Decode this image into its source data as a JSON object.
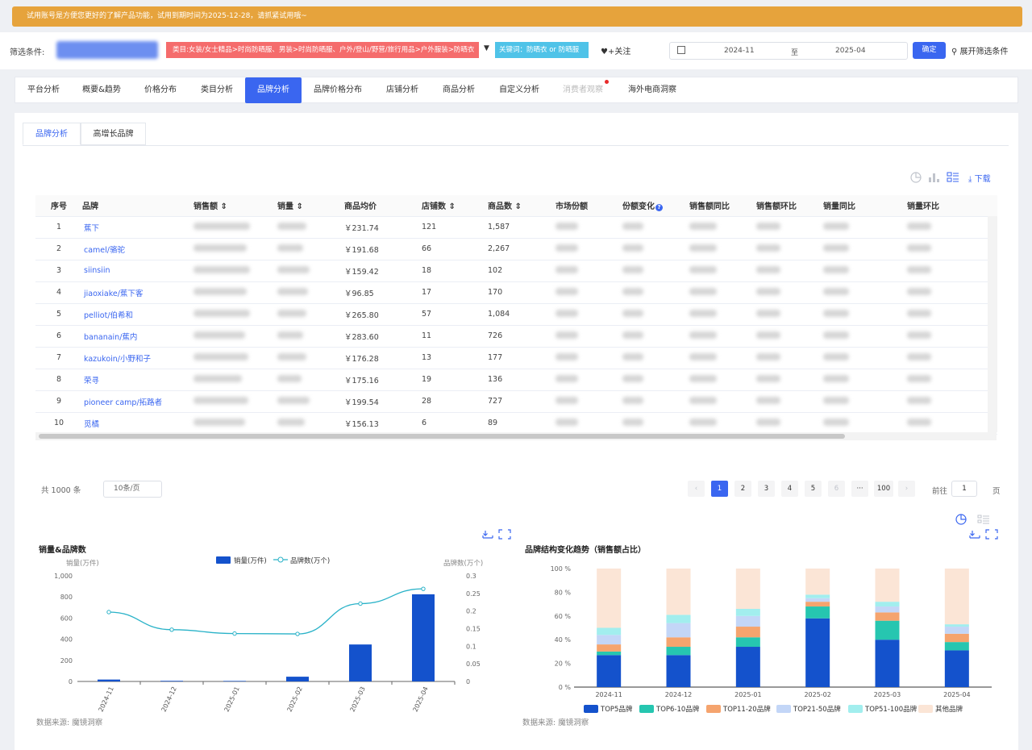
{
  "banner": {
    "text": "试用账号是方便您更好的了解产品功能，试用到期时间为2025-12-28，请抓紧试用哦~"
  },
  "filter": {
    "label": "筛选条件:",
    "category_tag": "类目:女装/女士精品>时尚防晒服、男装>时尚防晒服、户外/登山/野营/旅行用品>户外服装>防晒衣",
    "keyword_tag": "关键词：防晒衣 or 防晒服",
    "follow": "♥+关注",
    "date_from": "2024-11",
    "date_to_label": "至",
    "date_to": "2025-04",
    "confirm": "确定",
    "expand": "展开筛选条件"
  },
  "nav": {
    "tabs": [
      "平台分析",
      "概要&趋势",
      "价格分布",
      "类目分析",
      "品牌分析",
      "品牌价格分布",
      "店铺分析",
      "商品分析",
      "自定义分析",
      "消费者观察",
      "海外电商洞察"
    ],
    "active": "品牌分析"
  },
  "subtabs": [
    "品牌分析",
    "高增长品牌"
  ],
  "download_label": "下载",
  "table": {
    "headers": [
      "序号",
      "品牌",
      "销售额",
      "销量",
      "商品均价",
      "店铺数",
      "商品数",
      "市场份额",
      "份额变化",
      "销售额同比",
      "销售额环比",
      "销量同比",
      "销量环比"
    ],
    "rows": [
      {
        "idx": "1",
        "brand": "蕉下",
        "price": "￥231.74",
        "shops": "121",
        "items": "1,587"
      },
      {
        "idx": "2",
        "brand": "camel/骆驼",
        "price": "￥191.68",
        "shops": "66",
        "items": "2,267"
      },
      {
        "idx": "3",
        "brand": "siinsiin",
        "price": "￥159.42",
        "shops": "18",
        "items": "102"
      },
      {
        "idx": "4",
        "brand": "jiaoxiake/蕉下客",
        "price": "￥96.85",
        "shops": "17",
        "items": "170"
      },
      {
        "idx": "5",
        "brand": "pelliot/伯希和",
        "price": "￥265.80",
        "shops": "57",
        "items": "1,084"
      },
      {
        "idx": "6",
        "brand": "bananain/蕉内",
        "price": "￥283.60",
        "shops": "11",
        "items": "726"
      },
      {
        "idx": "7",
        "brand": "kazukoin/小野和子",
        "price": "￥176.28",
        "shops": "13",
        "items": "177"
      },
      {
        "idx": "8",
        "brand": "荣寻",
        "price": "￥175.16",
        "shops": "19",
        "items": "136"
      },
      {
        "idx": "9",
        "brand": "pioneer camp/拓路者",
        "price": "￥199.54",
        "shops": "28",
        "items": "727"
      },
      {
        "idx": "10",
        "brand": "觅橘",
        "price": "￥156.13",
        "shops": "6",
        "items": "89"
      }
    ]
  },
  "pagination": {
    "total": "共 1000 条",
    "page_size": "10条/页",
    "pages": [
      "1",
      "2",
      "3",
      "4",
      "5",
      "6",
      "···",
      "100"
    ],
    "prev": "‹",
    "next": "›",
    "goto_label": "前往",
    "goto_value": "1",
    "goto_suffix": "页"
  },
  "chart_data": [
    {
      "type": "bar",
      "title": "销量&品牌数",
      "categories": [
        "2024-11",
        "2024-12",
        "2025-01",
        "2025-02",
        "2025-03",
        "2025-04"
      ],
      "series": [
        {
          "name": "销量(万件)",
          "type": "bar",
          "axis": "left",
          "values": [
            18,
            6,
            5,
            45,
            350,
            825
          ],
          "color": "#1452cc"
        },
        {
          "name": "品牌数(万个)",
          "type": "line",
          "axis": "right",
          "values": [
            0.197,
            0.147,
            0.136,
            0.135,
            0.221,
            0.263
          ],
          "color": "#29b2c8"
        }
      ],
      "ylabel_left": "销量(万件)",
      "ylabel_right": "品牌数(万个)",
      "yticks_left": [
        "0",
        "200",
        "400",
        "600",
        "800",
        "1,000"
      ],
      "yticks_right": [
        "0",
        "0.05",
        "0.1",
        "0.15",
        "0.2",
        "0.25",
        "0.3"
      ],
      "ylim_left": [
        0,
        1000
      ],
      "ylim_right": [
        0,
        0.3
      ],
      "source": "数据来源: 魔镜洞察"
    },
    {
      "type": "bar",
      "stacked": true,
      "title": "品牌结构变化趋势（销售额占比）",
      "categories": [
        "2024-11",
        "2024-12",
        "2025-01",
        "2025-02",
        "2025-03",
        "2025-04"
      ],
      "series": [
        {
          "name": "TOP5品牌",
          "values": [
            27,
            27,
            34,
            58,
            40,
            31
          ],
          "color": "#1452cc"
        },
        {
          "name": "TOP6-10品牌",
          "values": [
            3,
            7,
            8,
            10,
            16,
            7
          ],
          "color": "#26c6b0"
        },
        {
          "name": "TOP11-20品牌",
          "values": [
            6,
            8,
            9,
            4,
            7,
            7
          ],
          "color": "#f5a46e"
        },
        {
          "name": "TOP21-50品牌",
          "values": [
            8,
            12,
            9,
            3,
            5,
            6
          ],
          "color": "#c3d6f7"
        },
        {
          "name": "TOP51-100品牌",
          "values": [
            6,
            7,
            6,
            3,
            4,
            2
          ],
          "color": "#a2eeee"
        },
        {
          "name": "其他品牌",
          "values": [
            50,
            39,
            34,
            22,
            28,
            47
          ],
          "color": "#fbe5d6"
        }
      ],
      "yticks": [
        "0 %",
        "20 %",
        "40 %",
        "60 %",
        "80 %",
        "100 %"
      ],
      "ylim": [
        0,
        100
      ],
      "source": "数据来源: 魔镜洞察"
    }
  ]
}
